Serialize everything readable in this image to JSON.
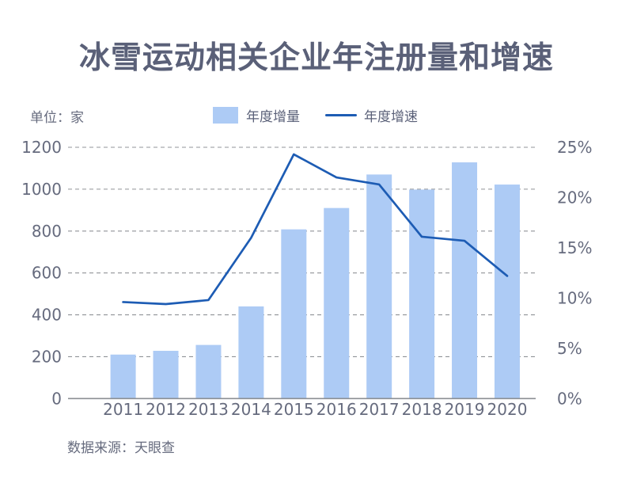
{
  "title": "冰雪运动相关企业年注册量和增速",
  "unit_label": "单位：家",
  "legend": {
    "bar_label": "年度增量",
    "line_label": "年度增速"
  },
  "source": "数据来源：天眼查",
  "colors": {
    "bar": "#adcbf5",
    "line": "#1d5cb4",
    "title_text": "#5a6078",
    "axis_text": "#666b7e",
    "grid": "#909398",
    "axis_line": "#8c8f94",
    "background": "#ffffff"
  },
  "chart_data": {
    "type": "bar+line",
    "title": "冰雪运动相关企业年注册量和增速",
    "categories": [
      "2011",
      "2012",
      "2013",
      "2014",
      "2015",
      "2016",
      "2017",
      "2018",
      "2019",
      "2020"
    ],
    "series": [
      {
        "name": "年度增量",
        "type": "bar",
        "yaxis": "left",
        "unit": "家",
        "values": [
          210,
          228,
          256,
          440,
          808,
          910,
          1070,
          998,
          1128,
          1022
        ]
      },
      {
        "name": "年度增速",
        "type": "line",
        "yaxis": "right",
        "unit": "%",
        "values": [
          9.6,
          9.4,
          9.8,
          16.0,
          24.3,
          22.0,
          21.3,
          16.1,
          15.7,
          12.2
        ]
      }
    ],
    "left_axis": {
      "label": "单位：家",
      "min": 0,
      "max": 1200,
      "step": 200,
      "ticks": [
        "1200",
        "1000",
        "800",
        "600",
        "400",
        "200",
        "0"
      ]
    },
    "right_axis": {
      "min": 0,
      "max": 25,
      "step": 5,
      "ticks": [
        "25%",
        "20%",
        "15%",
        "10%",
        "5%",
        "0%"
      ]
    },
    "grid": "horizontal dashed",
    "legend_position": "top-center",
    "source": "数据来源：天眼查"
  }
}
